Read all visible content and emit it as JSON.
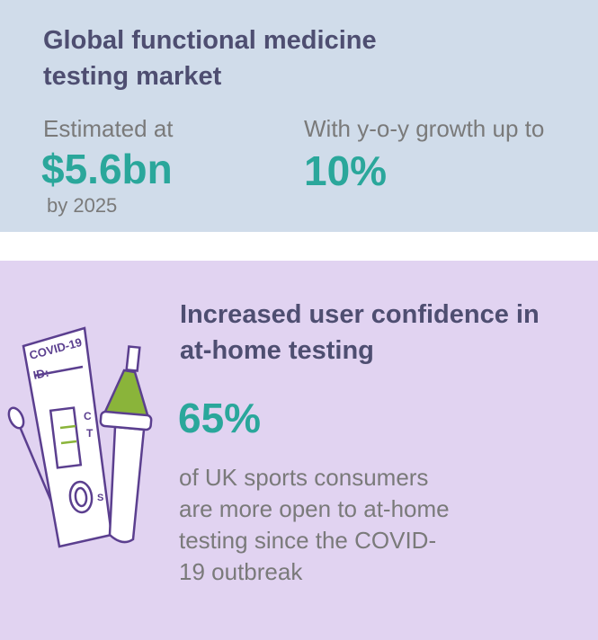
{
  "market": {
    "title": "Global functional medicine testing market",
    "estimate_label": "Estimated at",
    "estimate_value": "$5.6bn",
    "estimate_year": "by 2025",
    "growth_label": "With y-o-y growth up to",
    "growth_value": "10%"
  },
  "confidence": {
    "title": "Increased user confidence in at-home testing",
    "stat": "65%",
    "description": "of UK sports consumers are more open to at-home testing since the COVID-19 outbreak"
  },
  "illustration": {
    "test_name": "COVID-19",
    "id_label": "ID:",
    "control_mark": "C",
    "test_mark": "T",
    "sample_mark": "S"
  }
}
